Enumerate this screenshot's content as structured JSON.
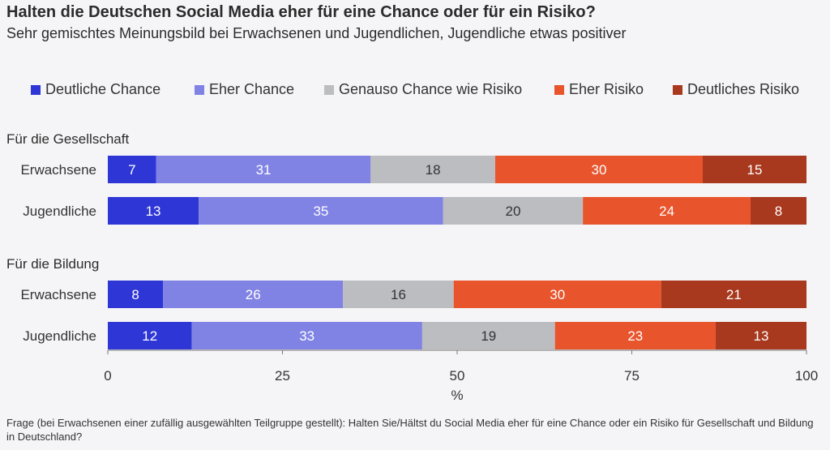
{
  "chart_data": {
    "type": "bar",
    "orientation": "horizontal-stacked",
    "title": "Halten die Deutschen Social Media eher für eine Chance oder für ein Risiko?",
    "subtitle": "Sehr gemischtes Meinungsbild bei Erwachsenen und Jugendlichen, Jugendliche etwas positiver",
    "legend": [
      {
        "label": "Deutliche Chance",
        "color": "#2e36d6"
      },
      {
        "label": "Eher Chance",
        "color": "#8083e4"
      },
      {
        "label": "Genauso Chance wie Risiko",
        "color": "#bcbdc1"
      },
      {
        "label": "Eher Risiko",
        "color": "#e8542c"
      },
      {
        "label": "Deutliches Risiko",
        "color": "#a8381e"
      }
    ],
    "groups": [
      {
        "label": "Für die Gesellschaft",
        "rows": [
          {
            "label": "Erwachsene",
            "values": [
              7,
              31,
              18,
              30,
              15
            ]
          },
          {
            "label": "Jugendliche",
            "values": [
              13,
              35,
              20,
              24,
              8
            ]
          }
        ]
      },
      {
        "label": "Für die Bildung",
        "rows": [
          {
            "label": "Erwachsene",
            "values": [
              8,
              26,
              16,
              30,
              21
            ]
          },
          {
            "label": "Jugendliche",
            "values": [
              12,
              33,
              19,
              23,
              13
            ]
          }
        ]
      }
    ],
    "xlabel": "%",
    "xlim": [
      0,
      100
    ],
    "xticks": [
      "0",
      "25",
      "50",
      "75",
      "100"
    ],
    "value_label_colors": [
      "#ffffff",
      "#ffffff",
      "#333333",
      "#ffffff",
      "#ffffff"
    ]
  },
  "footnote": "Frage (bei Erwachsenen einer zufällig ausgewählten Teilgruppe gestellt): Halten Sie/Hältst du Social Media eher für eine Chance oder ein Risiko für Gesellschaft und Bildung in Deutschland?"
}
